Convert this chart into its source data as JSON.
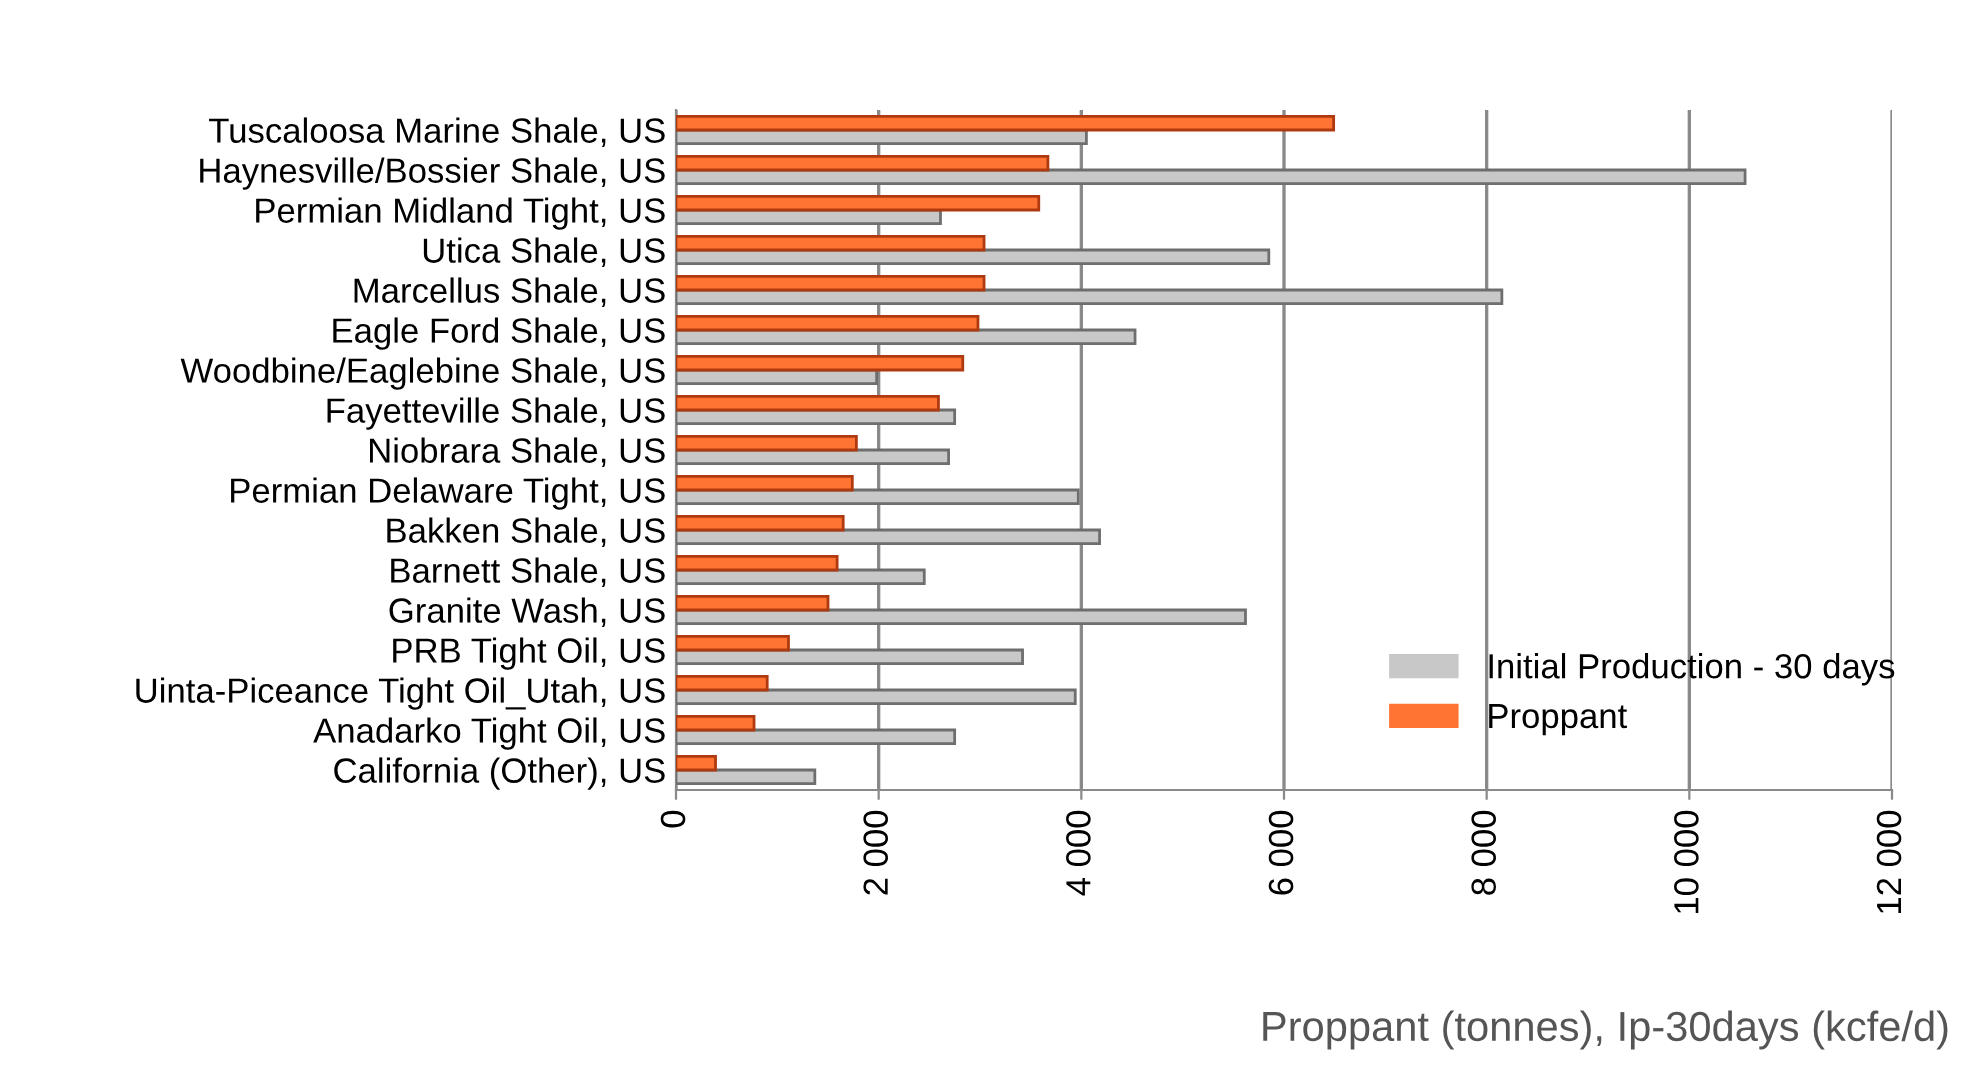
{
  "chart_data": {
    "type": "bar",
    "orientation": "horizontal",
    "xlabel": "Proppant (tonnes), Ip-30days (kcfe/d)",
    "categories": [
      "Tuscaloosa Marine Shale, US",
      "Haynesville/Bossier Shale, US",
      "Permian Midland Tight, US",
      "Utica Shale, US",
      "Marcellus Shale, US",
      "Eagle Ford Shale, US",
      "Woodbine/Eaglebine Shale, US",
      "Fayetteville Shale, US",
      "Niobrara Shale, US",
      "Permian Delaware Tight, US",
      "Bakken Shale, US",
      "Barnett Shale, US",
      "Granite Wash, US",
      "PRB Tight Oil, US",
      "Uinta-Piceance Tight Oil_Utah, US",
      "Anadarko Tight Oil, US",
      "California (Other), US"
    ],
    "series": [
      {
        "name": "Initial Production - 30 days",
        "color": "#c8c8c8",
        "values": [
          4050,
          10550,
          2610,
          5850,
          8150,
          4530,
          1980,
          2750,
          2690,
          3970,
          4180,
          2450,
          5620,
          3420,
          3940,
          2750,
          1370
        ]
      },
      {
        "name": "Proppant",
        "color": "#ff7433",
        "values": [
          6490,
          3670,
          3580,
          3040,
          3040,
          2980,
          2830,
          2590,
          1780,
          1740,
          1650,
          1590,
          1500,
          1110,
          900,
          770,
          390
        ]
      }
    ],
    "xlim": [
      0,
      12000
    ],
    "xticks": [
      0,
      {
        "value": 2000,
        "label": "2 000"
      },
      {
        "value": 4000,
        "label": "4 000"
      },
      {
        "value": 6000,
        "label": "6 000"
      },
      {
        "value": 8000,
        "label": "8 000"
      },
      {
        "value": 10000,
        "label": "10 000"
      },
      {
        "value": 12000,
        "label": "12 000"
      }
    ],
    "grid": "x",
    "legend": "bottom right"
  }
}
